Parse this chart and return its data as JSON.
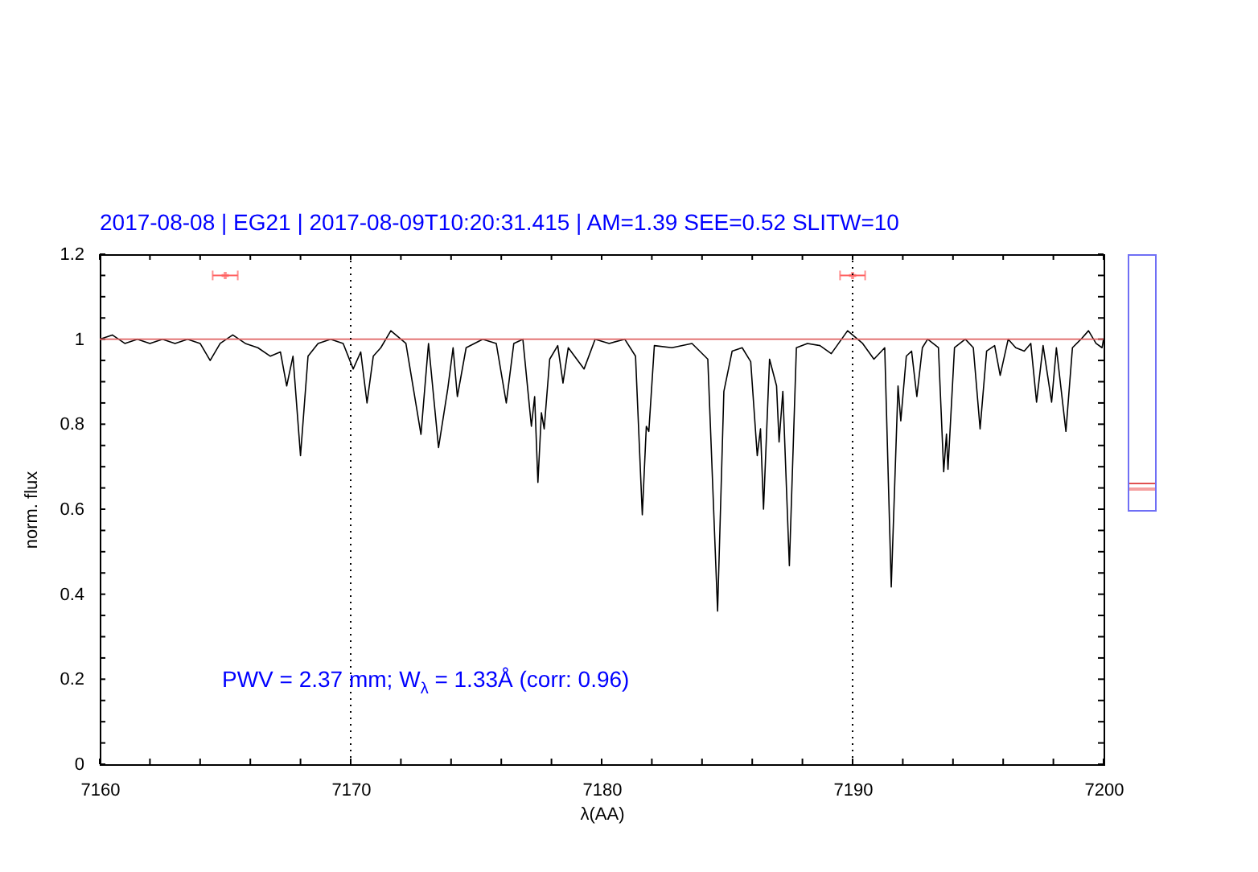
{
  "chart_data": {
    "type": "line",
    "title": "2017-08-08 | EG21 | 2017-08-09T10:20:31.415 | AM=1.39 SEE=0.52 SLITW=10",
    "xlabel": "λ(AA)",
    "ylabel": "norm. flux",
    "annotations": [
      "PWV = 2.37 mm; W$_{λ}$ = 1.33Å (corr: 0.96)"
    ],
    "xlim": [
      7160,
      7200
    ],
    "xticks": [
      7160,
      {
        "value": 7162,
        "label": null
      },
      {
        "value": 7164,
        "label": null
      },
      {
        "value": 7166,
        "label": null
      },
      {
        "value": 7168,
        "label": null
      },
      7170,
      {
        "value": 7172,
        "label": null
      },
      {
        "value": 7174,
        "label": null
      },
      {
        "value": 7176,
        "label": null
      },
      {
        "value": 7178,
        "label": null
      },
      7180,
      {
        "value": 7182,
        "label": null
      },
      {
        "value": 7184,
        "label": null
      },
      {
        "value": 7186,
        "label": null
      },
      {
        "value": 7188,
        "label": null
      },
      7190,
      {
        "value": 7192,
        "label": null
      },
      {
        "value": 7194,
        "label": null
      },
      {
        "value": 7196,
        "label": null
      },
      {
        "value": 7198,
        "label": null
      },
      7200
    ],
    "ylim": [
      0,
      1.2
    ],
    "yticks": [
      0,
      {
        "value": 0.05,
        "label": null
      },
      {
        "value": 0.1,
        "label": null
      },
      {
        "value": 0.15,
        "label": null
      },
      0.2,
      {
        "value": 0.25,
        "label": null
      },
      {
        "value": 0.3,
        "label": null
      },
      {
        "value": 0.35,
        "label": null
      },
      0.4,
      {
        "value": 0.45,
        "label": null
      },
      {
        "value": 0.5,
        "label": null
      },
      {
        "value": 0.55,
        "label": null
      },
      0.6,
      {
        "value": 0.65,
        "label": null
      },
      {
        "value": 0.7,
        "label": null
      },
      {
        "value": 0.75,
        "label": null
      },
      0.8,
      {
        "value": 0.85,
        "label": null
      },
      {
        "value": 0.9,
        "label": null
      },
      {
        "value": 0.95,
        "label": null
      },
      1,
      {
        "value": 1.05,
        "label": null
      },
      {
        "value": 1.1,
        "label": null
      },
      {
        "value": 1.15,
        "label": null
      },
      1.2
    ],
    "grid": false,
    "ref_lines": [
      {
        "axis": "y",
        "value": 1,
        "color": "#e06060",
        "line_style": "solid"
      },
      {
        "axis": "x",
        "value": 7170,
        "color": "#000000",
        "line_style": "dotted"
      },
      {
        "axis": "x",
        "value": 7190,
        "color": "#000000",
        "line_style": "dotted"
      }
    ],
    "series": [
      {
        "type": "line",
        "color": "#000000",
        "marker": "none",
        "line_style": "solid",
        "x": [
          7160,
          7160.5,
          7161,
          7161.5,
          7162,
          7162.5,
          7163,
          7163.5,
          7164,
          7164.4,
          7164.8,
          7165.3,
          7165.8,
          7166.3,
          7166.8,
          7167.2,
          7167.45,
          7167.7,
          7168,
          7168.3,
          7168.7,
          7169.2,
          7169.7,
          7170.1,
          7170.4,
          7170.65,
          7170.9,
          7171.2,
          7171.6,
          7172.2,
          7172.8,
          7173.1,
          7173.5,
          7173.87,
          7174.08,
          7174.25,
          7174.6,
          7175.26,
          7175.8,
          7176.2,
          7176.5,
          7176.86,
          7177.2,
          7177.33,
          7177.46,
          7177.6,
          7177.71,
          7177.93,
          7178.25,
          7178.46,
          7178.67,
          7179.3,
          7179.74,
          7180.3,
          7180.92,
          7181.35,
          7181.62,
          7181.78,
          7181.88,
          7182.1,
          7182.8,
          7183.6,
          7184.23,
          7184.62,
          7184.87,
          7185.2,
          7185.6,
          7185.94,
          7186.2,
          7186.33,
          7186.45,
          7186.69,
          7186.97,
          7187.07,
          7187.22,
          7187.48,
          7187.76,
          7188.2,
          7188.7,
          7189.15,
          7189.8,
          7190,
          7190.4,
          7190.85,
          7191.28,
          7191.54,
          7191.81,
          7191.92,
          7192.14,
          7192.35,
          7192.56,
          7192.78,
          7192.99,
          7193.42,
          7193.63,
          7193.74,
          7193.8,
          7194.06,
          7194.49,
          7194.81,
          7195.08,
          7195.34,
          7195.66,
          7195.88,
          7196.2,
          7196.5,
          7196.84,
          7197.1,
          7197.33,
          7197.59,
          7197.93,
          7198.12,
          7198.5,
          7198.76,
          7199.1,
          7199.4,
          7199.7,
          7199.94,
          7200
        ],
        "values": [
          1.0,
          1.01,
          0.99,
          1.0,
          0.99,
          1.0,
          0.99,
          1.0,
          0.99,
          0.95,
          0.99,
          1.01,
          0.99,
          0.98,
          0.96,
          0.97,
          0.89,
          0.96,
          0.726,
          0.96,
          0.99,
          1.0,
          0.99,
          0.93,
          0.97,
          0.85,
          0.96,
          0.98,
          1.02,
          0.99,
          0.776,
          0.99,
          0.745,
          0.884,
          0.98,
          0.865,
          0.98,
          1.0,
          0.99,
          0.85,
          0.99,
          1.0,
          0.795,
          0.865,
          0.663,
          0.827,
          0.789,
          0.953,
          0.985,
          0.897,
          0.98,
          0.93,
          1.0,
          0.99,
          1.0,
          0.96,
          0.587,
          0.795,
          0.783,
          0.985,
          0.98,
          0.99,
          0.953,
          0.36,
          0.877,
          0.972,
          0.98,
          0.947,
          0.726,
          0.789,
          0.6,
          0.953,
          0.89,
          0.758,
          0.877,
          0.467,
          0.98,
          0.99,
          0.985,
          0.966,
          1.02,
          1.01,
          0.99,
          0.953,
          0.98,
          0.417,
          0.89,
          0.808,
          0.96,
          0.972,
          0.865,
          0.98,
          1.0,
          0.98,
          0.688,
          0.777,
          0.694,
          0.98,
          1.0,
          0.98,
          0.789,
          0.972,
          0.985,
          0.915,
          1.0,
          0.98,
          0.972,
          0.99,
          0.852,
          0.985,
          0.852,
          0.98,
          0.783,
          0.98,
          1.0,
          1.02,
          0.99,
          0.98,
          1.0
        ]
      },
      {
        "type": "scatter",
        "color": "#ff6060",
        "marker": "cross",
        "x": [
          7165,
          7190
        ],
        "values": [
          1.15,
          1.15
        ],
        "xerrors": [
          0.5,
          0.5
        ]
      }
    ]
  }
}
